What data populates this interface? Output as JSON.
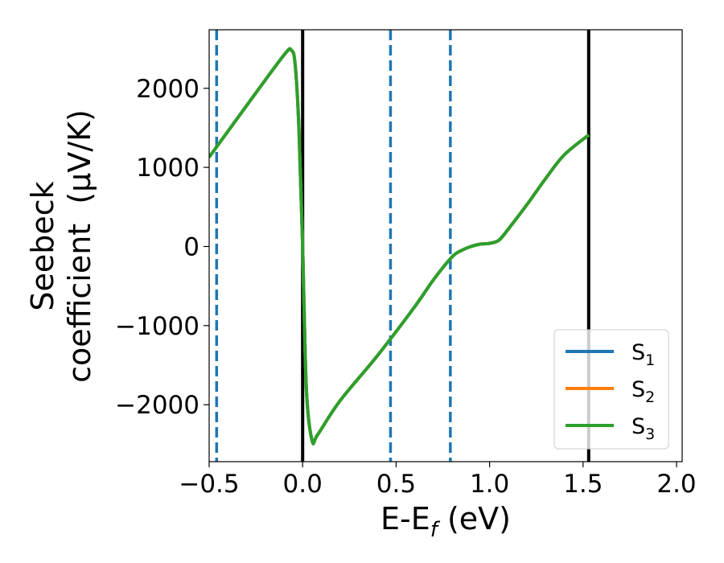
{
  "chart_data": {
    "type": "line",
    "xlabel": "E-E_f (eV)",
    "xlabel_parts": {
      "main": "E-E",
      "sub": "f",
      "tail": " (eV)"
    },
    "ylabel": "Seebeck coefficient (μV/K)",
    "ylabel_lines": [
      "Seebeck",
      "coefficient  (μV/K)"
    ],
    "xlim": [
      -0.5,
      2.03
    ],
    "ylim": [
      -2720,
      2740
    ],
    "x_ticks": [
      -0.5,
      0.0,
      0.5,
      1.0,
      1.5,
      2.0
    ],
    "x_tick_labels": [
      "−0.5",
      "0.0",
      "0.5",
      "1.0",
      "1.5",
      "2.0"
    ],
    "y_ticks": [
      -2000,
      -1000,
      0,
      1000,
      2000
    ],
    "y_tick_labels": [
      "−2000",
      "−1000",
      "0",
      "1000",
      "2000"
    ],
    "grid": false,
    "legend_position": "lower-right",
    "series": [
      {
        "name": "S1",
        "label_main": "S",
        "label_sub": "1",
        "color": "#1f77b4",
        "x": [
          -0.5,
          -0.3,
          -0.1,
          -0.06,
          -0.04,
          -0.02,
          0.0,
          0.02,
          0.05,
          0.08,
          0.2,
          0.4,
          0.6,
          0.7,
          0.8,
          0.85,
          0.9,
          0.95,
          1.0,
          1.05,
          1.1,
          1.2,
          1.3,
          1.4,
          1.53
        ],
        "y": [
          1130,
          1780,
          2420,
          2480,
          2300,
          1500,
          0,
          -1800,
          -2450,
          -2380,
          -1950,
          -1380,
          -760,
          -420,
          -130,
          -50,
          0,
          30,
          40,
          80,
          220,
          530,
          860,
          1160,
          1410
        ]
      },
      {
        "name": "S2",
        "label_main": "S",
        "label_sub": "2",
        "color": "#ff7f0e",
        "x": [
          -0.5,
          -0.3,
          -0.1,
          -0.06,
          -0.04,
          -0.02,
          0.0,
          0.02,
          0.05,
          0.08,
          0.2,
          0.4,
          0.6,
          0.7,
          0.8,
          0.85,
          0.9,
          0.95,
          1.0,
          1.05,
          1.1,
          1.2,
          1.3,
          1.4,
          1.53
        ],
        "y": [
          1130,
          1780,
          2420,
          2480,
          2300,
          1500,
          0,
          -1800,
          -2450,
          -2380,
          -1950,
          -1380,
          -760,
          -420,
          -130,
          -50,
          0,
          30,
          40,
          80,
          220,
          530,
          860,
          1160,
          1410
        ]
      },
      {
        "name": "S3",
        "label_main": "S",
        "label_sub": "3",
        "color": "#2ca02c",
        "x": [
          -0.5,
          -0.3,
          -0.1,
          -0.06,
          -0.04,
          -0.02,
          0.0,
          0.02,
          0.05,
          0.08,
          0.2,
          0.4,
          0.6,
          0.7,
          0.8,
          0.85,
          0.9,
          0.95,
          1.0,
          1.05,
          1.1,
          1.2,
          1.3,
          1.4,
          1.53
        ],
        "y": [
          1130,
          1780,
          2420,
          2480,
          2300,
          1500,
          0,
          -1800,
          -2450,
          -2380,
          -1950,
          -1380,
          -760,
          -420,
          -130,
          -50,
          0,
          30,
          40,
          80,
          220,
          530,
          860,
          1160,
          1410
        ]
      }
    ],
    "vertical_lines": [
      {
        "x": -0.46,
        "style": "dashed",
        "color": "#1f77b4"
      },
      {
        "x": 0.0,
        "style": "solid",
        "color": "#000000"
      },
      {
        "x": 0.47,
        "style": "dashed",
        "color": "#1f77b4"
      },
      {
        "x": 0.79,
        "style": "dashed",
        "color": "#1f77b4"
      },
      {
        "x": 1.53,
        "style": "solid",
        "color": "#000000"
      }
    ]
  }
}
